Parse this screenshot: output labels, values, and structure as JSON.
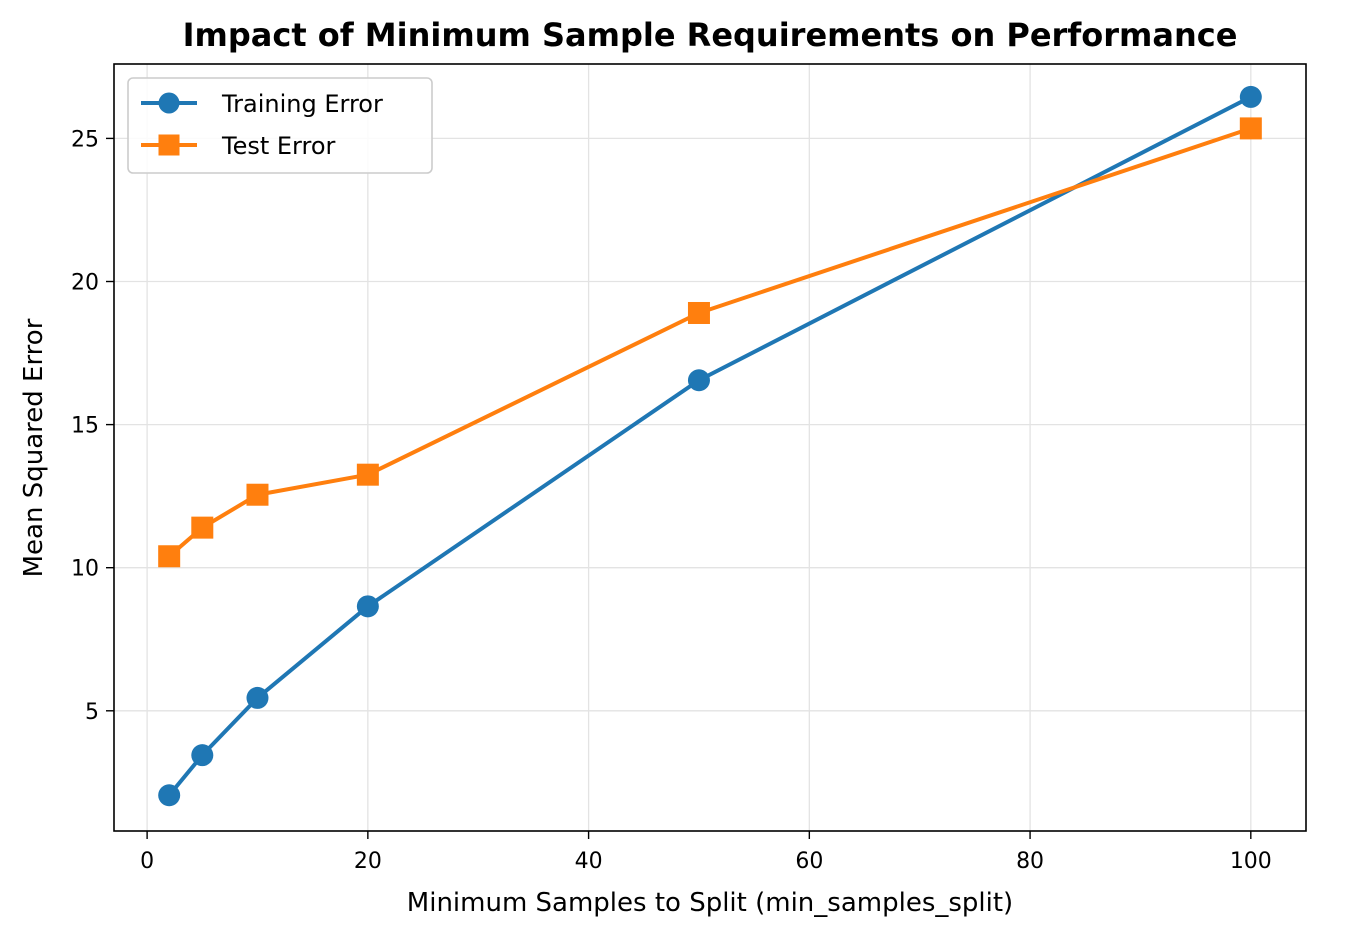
{
  "chart_data": {
    "type": "line",
    "title": "Impact of Minimum Sample Requirements on Performance",
    "xlabel": "Minimum Samples to Split (min_samples_split)",
    "ylabel": "Mean Squared Error",
    "x": [
      2,
      5,
      10,
      20,
      50,
      100
    ],
    "series": [
      {
        "name": "Training Error",
        "values": [
          2.05,
          3.45,
          5.45,
          8.65,
          16.55,
          26.45
        ],
        "color": "#1f77b4",
        "marker": "circle"
      },
      {
        "name": "Test Error",
        "values": [
          10.4,
          11.4,
          12.55,
          13.25,
          18.9,
          25.35
        ],
        "color": "#ff7f0e",
        "marker": "square"
      }
    ],
    "xlim": [
      -3,
      105
    ],
    "ylim": [
      0.8,
      27.6
    ],
    "xticks": [
      0,
      20,
      40,
      60,
      80,
      100
    ],
    "yticks": [
      5,
      10,
      15,
      20,
      25
    ],
    "xtick_labels": [
      "0",
      "20",
      "40",
      "60",
      "80",
      "100"
    ],
    "ytick_labels": [
      "5",
      "10",
      "15",
      "20",
      "25"
    ],
    "grid": true,
    "legend_position": "upper-left"
  }
}
